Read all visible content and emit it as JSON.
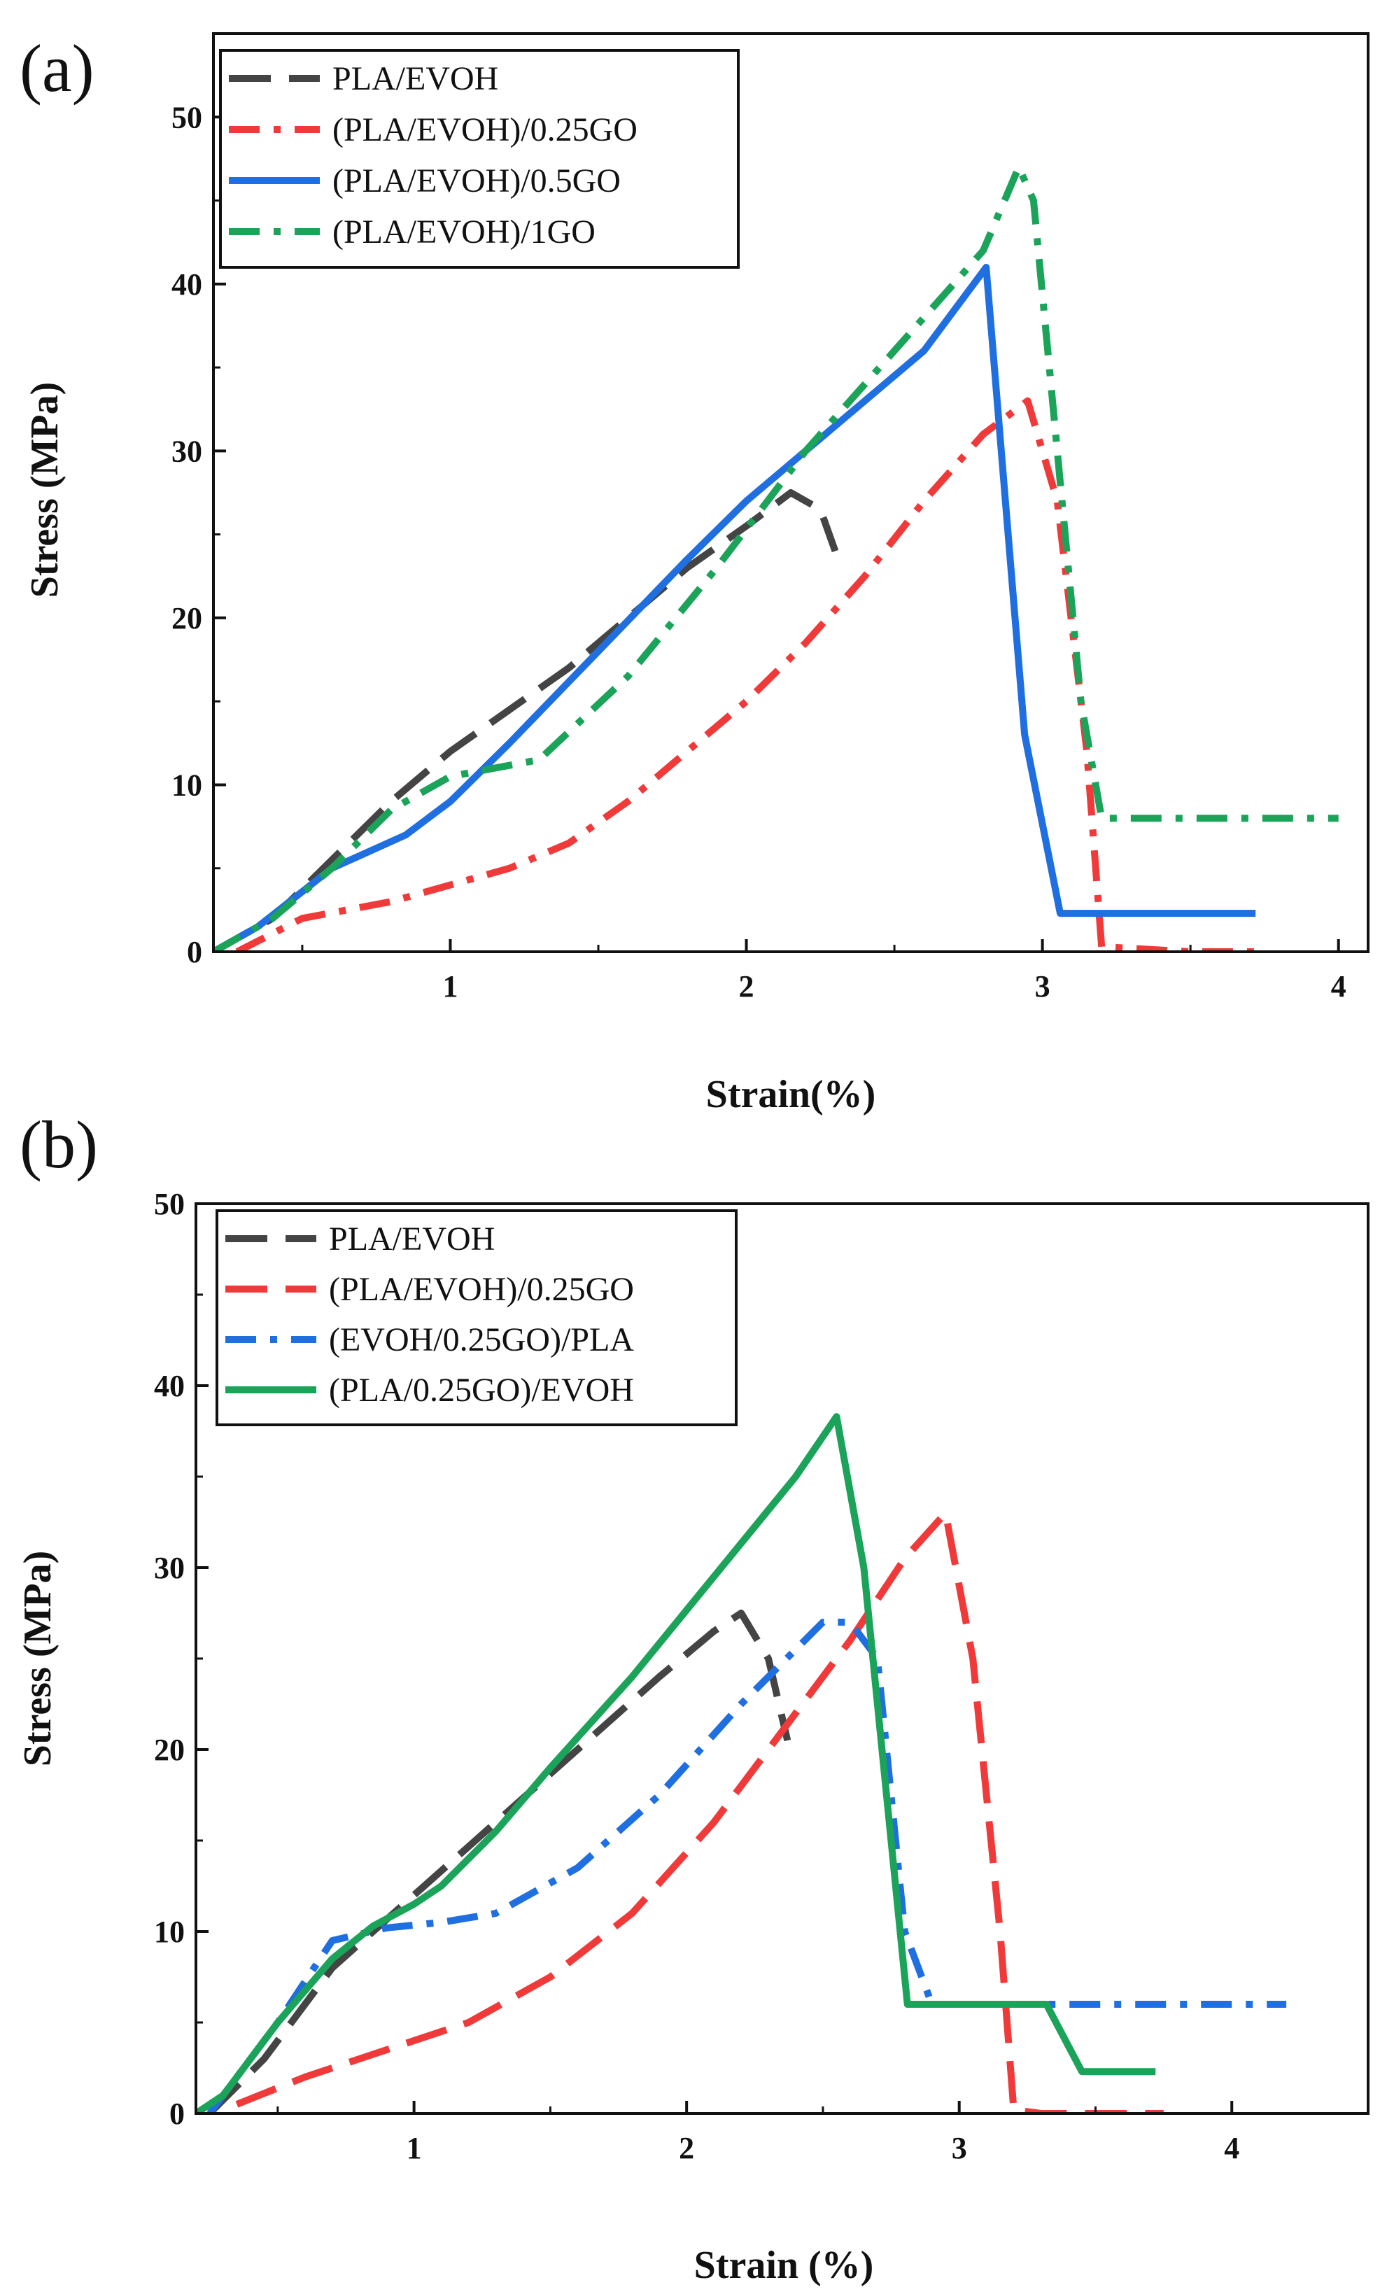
{
  "chart_data": [
    {
      "panel": "(a)",
      "type": "line",
      "xlabel": "Strain(%)",
      "ylabel": "Stress (MPa)",
      "xlim": [
        0.2,
        4.1
      ],
      "ylim": [
        0,
        55
      ],
      "xticks": [
        1,
        2,
        3,
        4
      ],
      "yticks": [
        0,
        10,
        20,
        30,
        40,
        50
      ],
      "legend_position": "top-left",
      "series": [
        {
          "name": "PLA/EVOH",
          "color": "#444444",
          "dash": "long-dash",
          "x": [
            0.2,
            0.4,
            0.6,
            0.8,
            1.0,
            1.2,
            1.4,
            1.6,
            1.8,
            2.0,
            2.15,
            2.25,
            2.3
          ],
          "y": [
            0,
            2,
            5.5,
            9,
            12,
            14.5,
            17,
            20,
            23,
            25.5,
            27.5,
            26.5,
            24
          ]
        },
        {
          "name": "(PLA/EVOH)/0.25GO",
          "color": "#f03a3a",
          "dash": "dash-dot",
          "x": [
            0.28,
            0.5,
            0.8,
            1.0,
            1.2,
            1.4,
            1.6,
            1.8,
            2.0,
            2.2,
            2.4,
            2.6,
            2.8,
            2.95,
            3.05,
            3.15,
            3.2,
            3.5,
            3.75
          ],
          "y": [
            0,
            2,
            3,
            4,
            5,
            6.5,
            9,
            12,
            15,
            18.5,
            22.5,
            27,
            31,
            33,
            27,
            12,
            0.3,
            0,
            0
          ]
        },
        {
          "name": "(PLA/EVOH)/0.5GO",
          "color": "#1f6fe0",
          "dash": "solid",
          "x": [
            0.2,
            0.35,
            0.6,
            0.85,
            1.0,
            1.2,
            1.5,
            1.8,
            2.0,
            2.3,
            2.6,
            2.81,
            2.94,
            3.06,
            3.3,
            3.72
          ],
          "y": [
            0,
            1.5,
            5,
            7,
            9,
            12.5,
            18,
            23.5,
            27,
            31.5,
            36,
            41,
            13,
            2.3,
            2.3,
            2.3
          ]
        },
        {
          "name": "(PLA/EVOH)/1GO",
          "color": "#1ba35a",
          "dash": "dash-dot",
          "x": [
            0.2,
            0.4,
            0.6,
            0.8,
            1.0,
            1.15,
            1.3,
            1.6,
            1.9,
            2.2,
            2.5,
            2.8,
            2.92,
            2.97,
            3.05,
            3.13,
            3.2,
            3.5,
            4.0
          ],
          "y": [
            0,
            2,
            5,
            8.5,
            10.5,
            11,
            11.5,
            16.5,
            23,
            30,
            36,
            42,
            47,
            45,
            30,
            15,
            8,
            8,
            8
          ]
        }
      ]
    },
    {
      "panel": "(b)",
      "type": "line",
      "xlabel": "Strain (%)",
      "ylabel": "Stress (MPa)",
      "xlim": [
        0.2,
        4.5
      ],
      "ylim": [
        0,
        50
      ],
      "xticks": [
        1,
        2,
        3,
        4
      ],
      "yticks": [
        0,
        10,
        20,
        30,
        40,
        50
      ],
      "legend_position": "top-left",
      "series": [
        {
          "name": "PLA/EVOH",
          "color": "#444444",
          "dash": "long-dash",
          "x": [
            0.25,
            0.45,
            0.7,
            1.0,
            1.3,
            1.6,
            1.9,
            2.1,
            2.2,
            2.3,
            2.37
          ],
          "y": [
            0,
            3,
            8,
            12,
            16,
            20,
            24,
            26.5,
            27.5,
            25,
            20.5
          ]
        },
        {
          "name": "(PLA/EVOH)/0.25GO",
          "color": "#f03a3a",
          "dash": "long-dash",
          "x": [
            0.35,
            0.6,
            0.9,
            1.2,
            1.5,
            1.8,
            2.1,
            2.4,
            2.6,
            2.8,
            2.95,
            3.05,
            3.15,
            3.2,
            3.3,
            3.5,
            3.75
          ],
          "y": [
            0.5,
            2,
            3.5,
            5,
            7.5,
            11,
            16,
            22,
            26,
            30.5,
            33,
            25,
            10,
            0.2,
            0,
            0,
            0
          ]
        },
        {
          "name": "(EVOH/0.25GO)/PLA",
          "color": "#1f6fe0",
          "dash": "dash-dot",
          "x": [
            0.25,
            0.5,
            0.7,
            0.9,
            1.1,
            1.3,
            1.6,
            1.9,
            2.2,
            2.5,
            2.6,
            2.7,
            2.8,
            2.9,
            3.2,
            3.6,
            4.2
          ],
          "y": [
            0,
            5,
            9.5,
            10.2,
            10.5,
            11,
            13.5,
            17.5,
            22.5,
            27,
            27,
            25,
            10,
            6,
            6,
            6,
            6
          ]
        },
        {
          "name": "(PLA/0.25GO)/EVOH",
          "color": "#1ba35a",
          "dash": "solid",
          "x": [
            0.2,
            0.3,
            0.5,
            0.7,
            0.85,
            1.0,
            1.1,
            1.3,
            1.5,
            1.8,
            2.1,
            2.4,
            2.55,
            2.65,
            2.81,
            3.0,
            3.32,
            3.45,
            3.72
          ],
          "y": [
            0,
            1,
            5,
            8.5,
            10.3,
            11.5,
            12.5,
            15.5,
            19,
            24,
            29.5,
            35,
            38.3,
            30,
            6,
            6,
            6,
            2.3,
            2.3
          ]
        }
      ]
    }
  ]
}
